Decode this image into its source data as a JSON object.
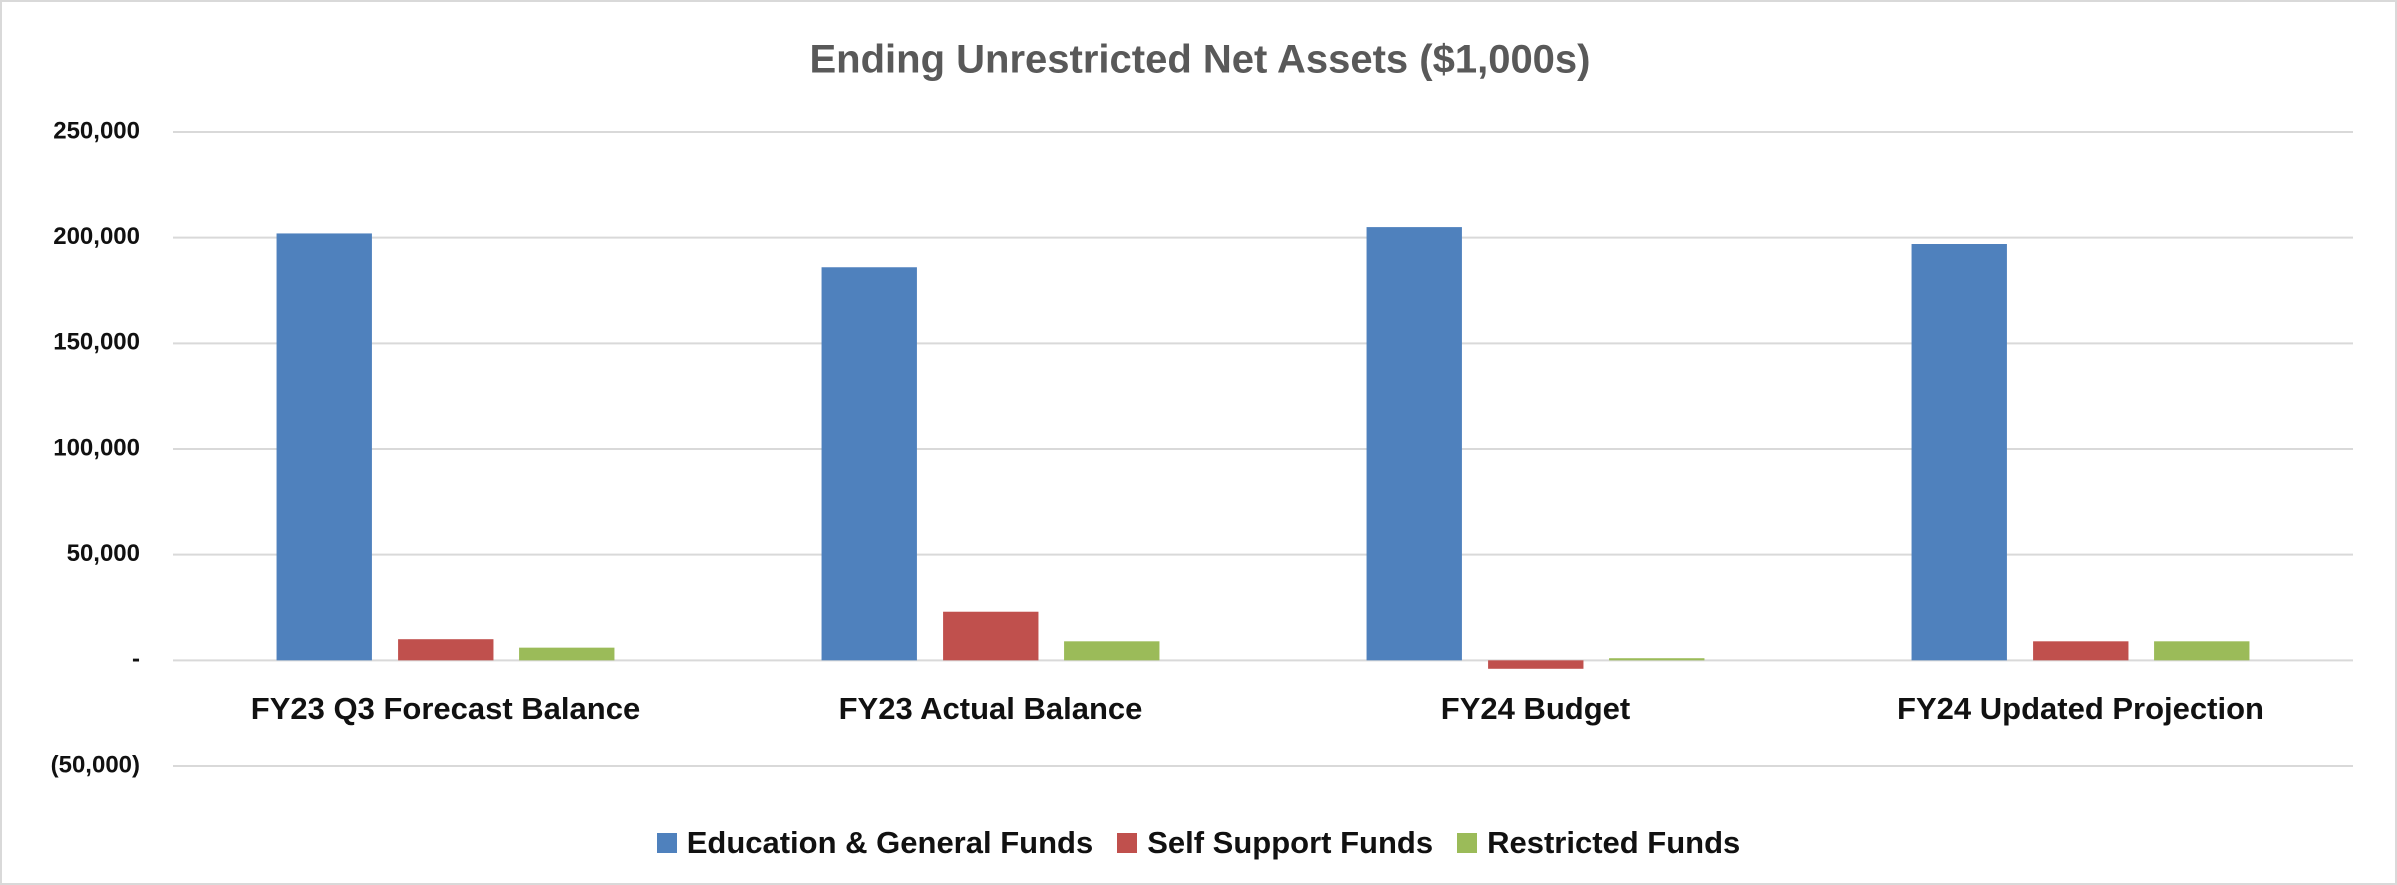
{
  "chart_data": {
    "type": "bar",
    "title": "Ending Unrestricted Net Assets ($1,000s)",
    "categories": [
      "FY23 Q3 Forecast Balance",
      "FY23 Actual Balance",
      "FY24 Budget",
      "FY24 Updated Projection"
    ],
    "series": [
      {
        "name": "Education & General Funds",
        "color": "#4f81bd",
        "values": [
          202000,
          186000,
          205000,
          197000
        ]
      },
      {
        "name": "Self Support Funds",
        "color": "#c0504d",
        "values": [
          10000,
          23000,
          -4000,
          9000
        ]
      },
      {
        "name": "Restricted Funds",
        "color": "#9bbb59",
        "values": [
          6000,
          9000,
          1000,
          9000
        ]
      }
    ],
    "ylim": [
      -50000,
      250000
    ],
    "yticks": [
      {
        "value": -50000,
        "label": "(50,000)"
      },
      {
        "value": 0,
        "label": "-"
      },
      {
        "value": 50000,
        "label": "50,000"
      },
      {
        "value": 100000,
        "label": "100,000"
      },
      {
        "value": 150000,
        "label": "150,000"
      },
      {
        "value": 200000,
        "label": "200,000"
      },
      {
        "value": 250000,
        "label": "250,000"
      }
    ],
    "grid": true,
    "legend": "bottom"
  }
}
